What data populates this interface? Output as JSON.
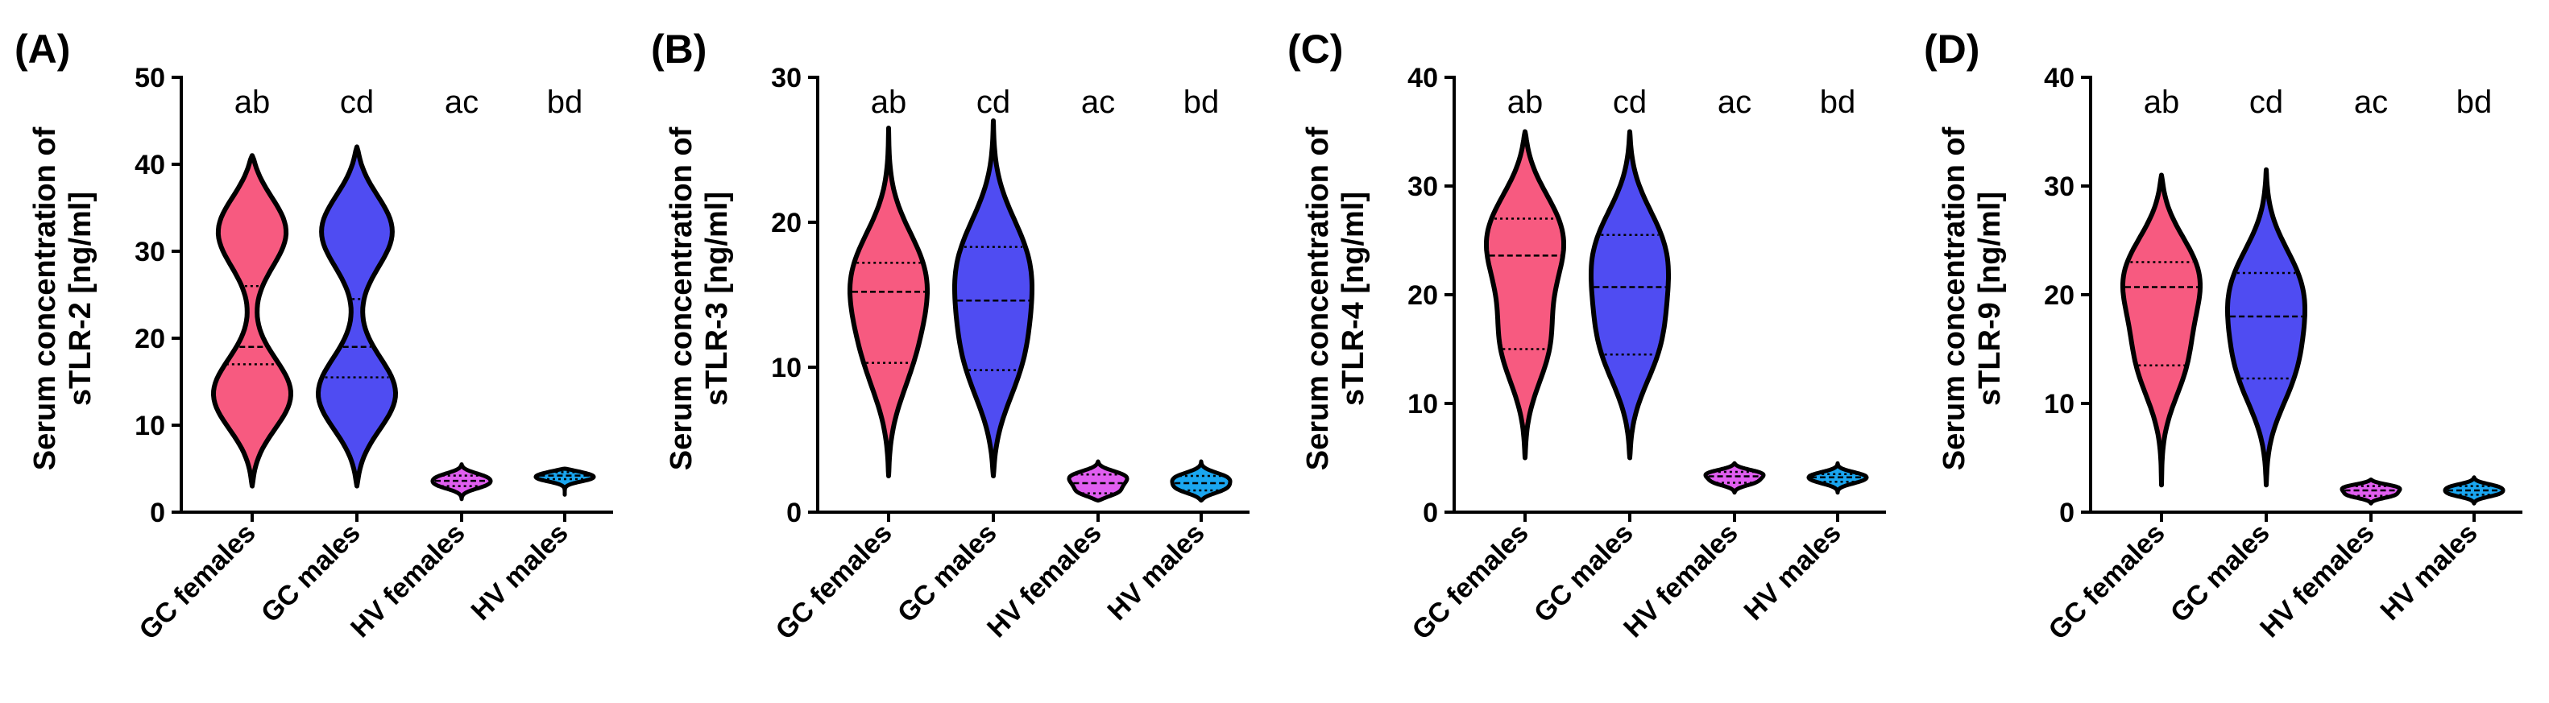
{
  "chart_data": [
    {
      "panel": "(A)",
      "type": "violin",
      "ylabel_line1": "Serum concentration of",
      "ylabel_line2": "sTLR-2 [ng/ml]",
      "ylim": [
        0,
        50
      ],
      "yticks": [
        "0",
        "10",
        "20",
        "30",
        "40",
        "50"
      ],
      "categories": [
        "GC females",
        "GC males",
        "HV females",
        "HV males"
      ],
      "colors": [
        "#f75a80",
        "#4f4cf2",
        "#e05ef0",
        "#1aa6f0"
      ],
      "significance": [
        "ab",
        "cd",
        "ac",
        "bd"
      ],
      "min": [
        3,
        3,
        1.5,
        2
      ],
      "max": [
        41,
        42,
        5.5,
        5
      ],
      "q1": [
        17,
        15.5,
        3,
        3.8
      ],
      "median": [
        19,
        19,
        3.6,
        4.2
      ],
      "q3": [
        26,
        24.5,
        4.2,
        4.6
      ],
      "modes": [
        [
          13,
          1.0
        ],
        [
          33,
          0.95
        ]
      ]
    },
    {
      "panel": "(B)",
      "type": "violin",
      "ylabel_line1": "Serum concentration of",
      "ylabel_line2": "sTLR-3 [ng/ml]",
      "ylim": [
        0,
        30
      ],
      "yticks": [
        "0",
        "10",
        "20",
        "30"
      ],
      "categories": [
        "GC females",
        "GC males",
        "HV females",
        "HV males"
      ],
      "colors": [
        "#f75a80",
        "#4f4cf2",
        "#e05ef0",
        "#1aa6f0"
      ],
      "significance": [
        "ab",
        "cd",
        "ac",
        "bd"
      ],
      "min": [
        2.5,
        2.5,
        0.8,
        0.8
      ],
      "max": [
        26.5,
        27,
        3.5,
        3.5
      ],
      "q1": [
        10.3,
        9.8,
        1.3,
        1.5
      ],
      "median": [
        15.2,
        14.6,
        2,
        2
      ],
      "q3": [
        17.2,
        18.3,
        2.6,
        2.5
      ]
    },
    {
      "panel": "(C)",
      "type": "violin",
      "ylabel_line1": "Serum concentration of",
      "ylabel_line2": "sTLR-4 [ng/ml]",
      "ylim": [
        0,
        40
      ],
      "yticks": [
        "0",
        "10",
        "20",
        "30",
        "40"
      ],
      "categories": [
        "GC females",
        "GC males",
        "HV females",
        "HV males"
      ],
      "colors": [
        "#f75a80",
        "#4f4cf2",
        "#e05ef0",
        "#1aa6f0"
      ],
      "significance": [
        "ab",
        "cd",
        "ac",
        "bd"
      ],
      "min": [
        5,
        5,
        1.8,
        1.8
      ],
      "max": [
        35,
        35,
        4.5,
        4.5
      ],
      "q1": [
        15,
        14.5,
        2.7,
        2.8
      ],
      "median": [
        23.6,
        20.7,
        3.3,
        3.2
      ],
      "q3": [
        27,
        25.5,
        3.7,
        3.5
      ]
    },
    {
      "panel": "(D)",
      "type": "violin",
      "ylabel_line1": "Serum concentration of",
      "ylabel_line2": "sTLR-9 [ng/ml]",
      "ylim": [
        0,
        40
      ],
      "yticks": [
        "0",
        "10",
        "20",
        "30",
        "40"
      ],
      "categories": [
        "GC females",
        "GC males",
        "HV females",
        "HV males"
      ],
      "colors": [
        "#f75a80",
        "#4f4cf2",
        "#e05ef0",
        "#1aa6f0"
      ],
      "significance": [
        "ab",
        "cd",
        "ac",
        "bd"
      ],
      "min": [
        2.5,
        2.5,
        0.8,
        0.8
      ],
      "max": [
        31,
        31.5,
        3,
        3.2
      ],
      "q1": [
        13.5,
        12.3,
        1.5,
        1.6
      ],
      "median": [
        20.7,
        18,
        2,
        2
      ],
      "q3": [
        23,
        22,
        2.4,
        2.4
      ]
    }
  ]
}
